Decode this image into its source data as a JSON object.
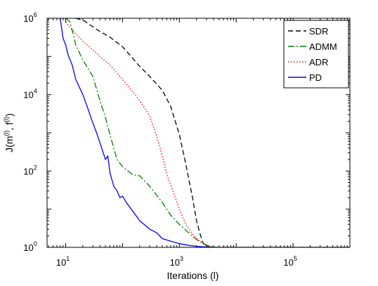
{
  "chart_data": {
    "type": "line",
    "xlabel": "Iterations (l)",
    "ylabel": "J(m(l), f(l))",
    "ylabel_parts": {
      "base": "J(m",
      "exp1": "(l)",
      "mid": ", f",
      "exp2": "(l)",
      "close": ")"
    },
    "x_scale": "log",
    "y_scale": "log",
    "xlim": [
      4.7,
      1000000
    ],
    "ylim": [
      1,
      1000000
    ],
    "x_ticks": [
      {
        "base": "10",
        "exp": "1",
        "value": 10
      },
      {
        "base": "10",
        "exp": "3",
        "value": 1000
      },
      {
        "base": "10",
        "exp": "5",
        "value": 100000
      }
    ],
    "y_ticks": [
      {
        "base": "10",
        "exp": "0",
        "value": 1
      },
      {
        "base": "10",
        "exp": "2",
        "value": 100
      },
      {
        "base": "10",
        "exp": "4",
        "value": 10000
      },
      {
        "base": "10",
        "exp": "6",
        "value": 1000000
      }
    ],
    "grid": false,
    "legend_position": "top-right",
    "series": [
      {
        "name": "SDR",
        "color": "#000000",
        "dash": "7,4",
        "x": [
          15,
          20,
          30,
          40,
          60,
          100,
          150,
          200,
          300,
          500,
          700,
          1000,
          1300,
          1700,
          2000,
          2300,
          2600,
          3000,
          4000,
          1000000
        ],
        "y": [
          1000000,
          900000,
          600000,
          450000,
          320000,
          180000,
          90000,
          55000,
          30000,
          13000,
          5000,
          900,
          150,
          20,
          5,
          2.3,
          1.3,
          1.05,
          1.0,
          1.0
        ]
      },
      {
        "name": "ADMM",
        "color": "#008000",
        "dash": "9,3,2,3",
        "x": [
          10,
          12,
          15,
          20,
          30,
          40,
          50,
          60,
          80,
          100,
          150,
          200,
          300,
          500,
          700,
          1000,
          1500,
          2000,
          2500,
          3000,
          4000,
          1000000
        ],
        "y": [
          1000000,
          800000,
          200000,
          80000,
          30000,
          7000,
          2500,
          900,
          200,
          130,
          80,
          75,
          40,
          15,
          7,
          4,
          2.3,
          1.6,
          1.3,
          1.15,
          1.0,
          1.0
        ]
      },
      {
        "name": "ADR",
        "color": "#ff0000",
        "dash": "1.5,2.5",
        "x": [
          10,
          13,
          20,
          30,
          40,
          60,
          100,
          150,
          200,
          300,
          400,
          500,
          600,
          800,
          1000,
          1300,
          1600,
          2000,
          2500,
          3000,
          4000,
          1000000
        ],
        "y": [
          800000,
          500000,
          250000,
          150000,
          100000,
          60000,
          25000,
          12000,
          7000,
          2800,
          800,
          250,
          80,
          25,
          10,
          4,
          2.5,
          1.7,
          1.3,
          1.1,
          1.0,
          1.0
        ]
      },
      {
        "name": "PD",
        "color": "#0000ff",
        "dash": "",
        "x": [
          8,
          9,
          10,
          11,
          13,
          15,
          20,
          25,
          30,
          35,
          40,
          50,
          55,
          60,
          70,
          80,
          90,
          100,
          120,
          150,
          200,
          300,
          400,
          500,
          700,
          1000,
          1500,
          2000,
          3000,
          5000,
          1000000
        ],
        "y": [
          1000000,
          300000,
          200000,
          110000,
          60000,
          25000,
          10000,
          4000,
          1800,
          1000,
          550,
          200,
          250,
          90,
          40,
          30,
          20,
          22,
          14,
          9,
          5,
          3,
          2.4,
          1.7,
          1.45,
          1.25,
          1.12,
          1.06,
          1.02,
          1.0,
          1.0
        ]
      }
    ]
  }
}
